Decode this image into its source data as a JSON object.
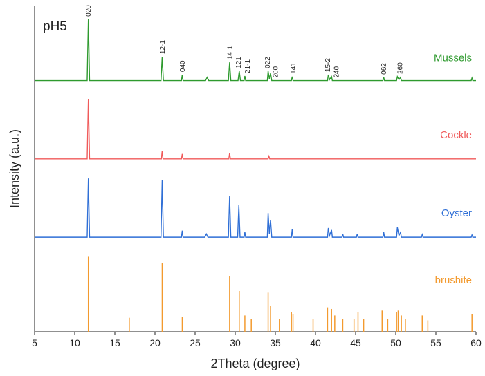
{
  "chart_data": {
    "type": "line",
    "annotation": "pH5",
    "xlabel": "2Theta (degree)",
    "ylabel": "Intensity (a.u.)",
    "xlim": [
      5,
      60
    ],
    "xticks": [
      5,
      10,
      15,
      20,
      25,
      30,
      35,
      40,
      45,
      50,
      55,
      60
    ],
    "ylim": [
      0,
      100
    ],
    "series": [
      {
        "name": "Mussels",
        "color": "#2e9a2e",
        "type": "line",
        "x": [
          5,
          11.55,
          11.7,
          11.85,
          20.75,
          20.9,
          21.05,
          23.3,
          23.4,
          23.5,
          26.3,
          26.5,
          26.7,
          29.15,
          29.3,
          29.45,
          30.35,
          30.5,
          30.65,
          31.1,
          31.2,
          31.3,
          34.0,
          34.1,
          34.25,
          34.4,
          34.55,
          37.0,
          37.1,
          37.2,
          41.5,
          41.6,
          41.75,
          42.0,
          42.1,
          48.4,
          48.5,
          48.6,
          50.1,
          50.2,
          50.4,
          50.6,
          50.7,
          59.4,
          59.5,
          59.6,
          60
        ],
        "values": [
          77,
          77,
          95.8,
          77,
          77,
          84.3,
          77,
          77,
          78.8,
          77,
          77,
          78,
          77,
          77,
          82.6,
          77,
          77,
          79.9,
          77,
          77,
          78.4,
          77,
          77,
          79.9,
          77.5,
          79.2,
          77,
          77,
          78.2,
          77,
          77,
          78.8,
          77.3,
          78.2,
          77,
          77,
          78,
          77,
          77,
          78.2,
          77.3,
          78,
          77,
          77,
          77.8,
          77,
          77
        ]
      },
      {
        "name": "Cockle",
        "color": "#f05a5a",
        "type": "line",
        "x": [
          5,
          11.55,
          11.7,
          11.85,
          20.8,
          20.9,
          21.0,
          23.3,
          23.4,
          23.5,
          29.2,
          29.3,
          29.4,
          34.1,
          34.2,
          34.3,
          60
        ],
        "values": [
          53,
          53,
          71.4,
          53,
          53,
          55.5,
          53,
          53,
          54.5,
          53,
          53,
          54.8,
          53,
          53,
          53.8,
          53,
          53
        ]
      },
      {
        "name": "Oyster",
        "color": "#2f6fd6",
        "type": "line",
        "x": [
          5,
          11.55,
          11.7,
          11.85,
          20.75,
          20.9,
          21.05,
          23.3,
          23.4,
          23.5,
          26.2,
          26.4,
          26.6,
          29.15,
          29.3,
          29.45,
          30.3,
          30.45,
          30.6,
          31.1,
          31.2,
          31.3,
          34.0,
          34.1,
          34.25,
          34.4,
          34.55,
          37.0,
          37.1,
          37.2,
          41.5,
          41.6,
          41.75,
          42.0,
          42.1,
          43.3,
          43.4,
          43.5,
          45.1,
          45.2,
          45.3,
          48.4,
          48.5,
          48.6,
          50.1,
          50.2,
          50.4,
          50.6,
          50.7,
          53.2,
          53.3,
          53.4,
          59.4,
          59.5,
          59.6,
          60
        ],
        "values": [
          29,
          29,
          47,
          29,
          29,
          46.6,
          29,
          29,
          31,
          29,
          29,
          30,
          29,
          29,
          41.7,
          29,
          29,
          38.8,
          29,
          29,
          30.5,
          29,
          29,
          36.4,
          30,
          34.3,
          29,
          29,
          31.4,
          29,
          29,
          31.8,
          29.5,
          31.2,
          29,
          29,
          30,
          29,
          29,
          30,
          29,
          29,
          30.5,
          29,
          29,
          32,
          29.5,
          30.5,
          29,
          29,
          29.8,
          29,
          29,
          29.7,
          29,
          29
        ]
      },
      {
        "name": "brushite",
        "color": "#f39a2e",
        "type": "stem",
        "x": [
          11.7,
          16.8,
          20.9,
          23.4,
          29.3,
          30.5,
          31.2,
          32.0,
          34.1,
          34.4,
          35.5,
          37.0,
          37.2,
          39.7,
          41.5,
          42.0,
          42.4,
          43.4,
          44.8,
          45.3,
          46.0,
          48.3,
          49.0,
          50.1,
          50.3,
          50.7,
          51.2,
          53.3,
          54.0,
          59.5
        ],
        "values": [
          23,
          4.3,
          21,
          4.5,
          17,
          12.5,
          5,
          4,
          12,
          8,
          4,
          6,
          5.5,
          4,
          7.5,
          7,
          5,
          4,
          4,
          6,
          4,
          6.5,
          4,
          6,
          6.5,
          5,
          4,
          5,
          3.5,
          5.5
        ]
      }
    ],
    "peak_labels": [
      {
        "text": "020",
        "x": 11.7
      },
      {
        "text": "12-1",
        "x": 20.9
      },
      {
        "text": "040",
        "x": 23.4
      },
      {
        "text": "14-1",
        "x": 29.3
      },
      {
        "text": "121",
        "x": 30.4
      },
      {
        "text": "21-1",
        "x": 31.5
      },
      {
        "text": "022",
        "x": 34.0
      },
      {
        "text": "200",
        "x": 35.0
      },
      {
        "text": "141",
        "x": 37.2
      },
      {
        "text": "15-2",
        "x": 41.5
      },
      {
        "text": "240",
        "x": 42.6
      },
      {
        "text": "062",
        "x": 48.5
      },
      {
        "text": "260",
        "x": 50.5
      }
    ]
  }
}
